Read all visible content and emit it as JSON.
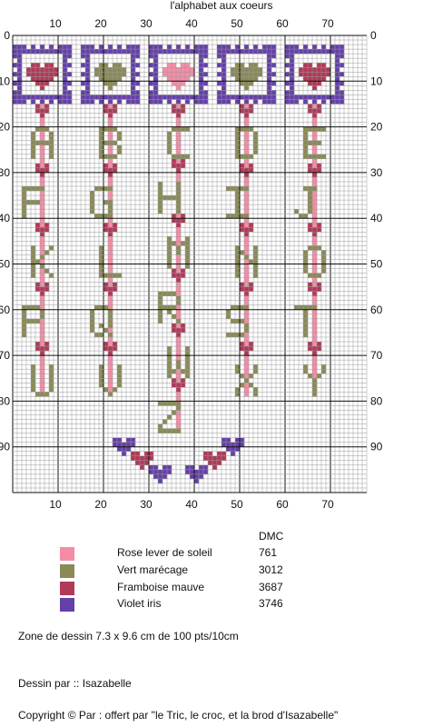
{
  "title": "l'alphabet aux coeurs",
  "grid": {
    "cols": 78,
    "rows": 100,
    "ticks": [
      "10",
      "20",
      "30",
      "40",
      "50",
      "60",
      "70",
      "80",
      "90"
    ],
    "zero": "0"
  },
  "colors": {
    "rose": "#f58ca6",
    "vert": "#8a8a58",
    "framboise": "#b03a58",
    "violet": "#6440a8",
    "grid_minor": "#9a9a9a",
    "grid_major": "#111111"
  },
  "pattern": {
    "frames": [
      {
        "center_col": 6,
        "heart": "framboise"
      },
      {
        "center_col": 21,
        "heart": "vert"
      },
      {
        "center_col": 36,
        "heart": "rose"
      },
      {
        "center_col": 51,
        "heart": "vert"
      },
      {
        "center_col": 66,
        "heart": "framboise"
      }
    ],
    "columns": [
      {
        "col": 6,
        "letters": [
          "A",
          "F",
          "K",
          "P",
          "U"
        ]
      },
      {
        "col": 21,
        "letters": [
          "B",
          "G",
          "L",
          "Q",
          "V"
        ]
      },
      {
        "col": 36,
        "letters": [
          "C",
          "H",
          "M",
          "R",
          "W",
          "Z"
        ]
      },
      {
        "col": 51,
        "letters": [
          "D",
          "I",
          "N",
          "S",
          "X"
        ]
      },
      {
        "col": 66,
        "letters": [
          "E",
          "J",
          "O",
          "T",
          "Y"
        ]
      }
    ],
    "bottom_hearts": [
      "violet",
      "framboise",
      "violet",
      "violet",
      "framboise",
      "violet"
    ]
  },
  "legend": {
    "header": "DMC",
    "items": [
      {
        "name": "Rose lever de soleil",
        "code": "761",
        "color": "#f58ca6"
      },
      {
        "name": "Vert marécage",
        "code": "3012",
        "color": "#8a8a58"
      },
      {
        "name": "Framboise mauve",
        "code": "3687",
        "color": "#b03a58"
      },
      {
        "name": "Violet iris",
        "code": "3746",
        "color": "#6440a8"
      }
    ]
  },
  "footer": {
    "zone": "Zone de dessin   7.3 x   9.6 cm  de 100 pts/10cm",
    "author": "Dessin par :: Isazabelle",
    "copyright": "Copyright  ©  Par : offert par \"le Tric, le croc, et la brod  d'Isazabelle\""
  }
}
